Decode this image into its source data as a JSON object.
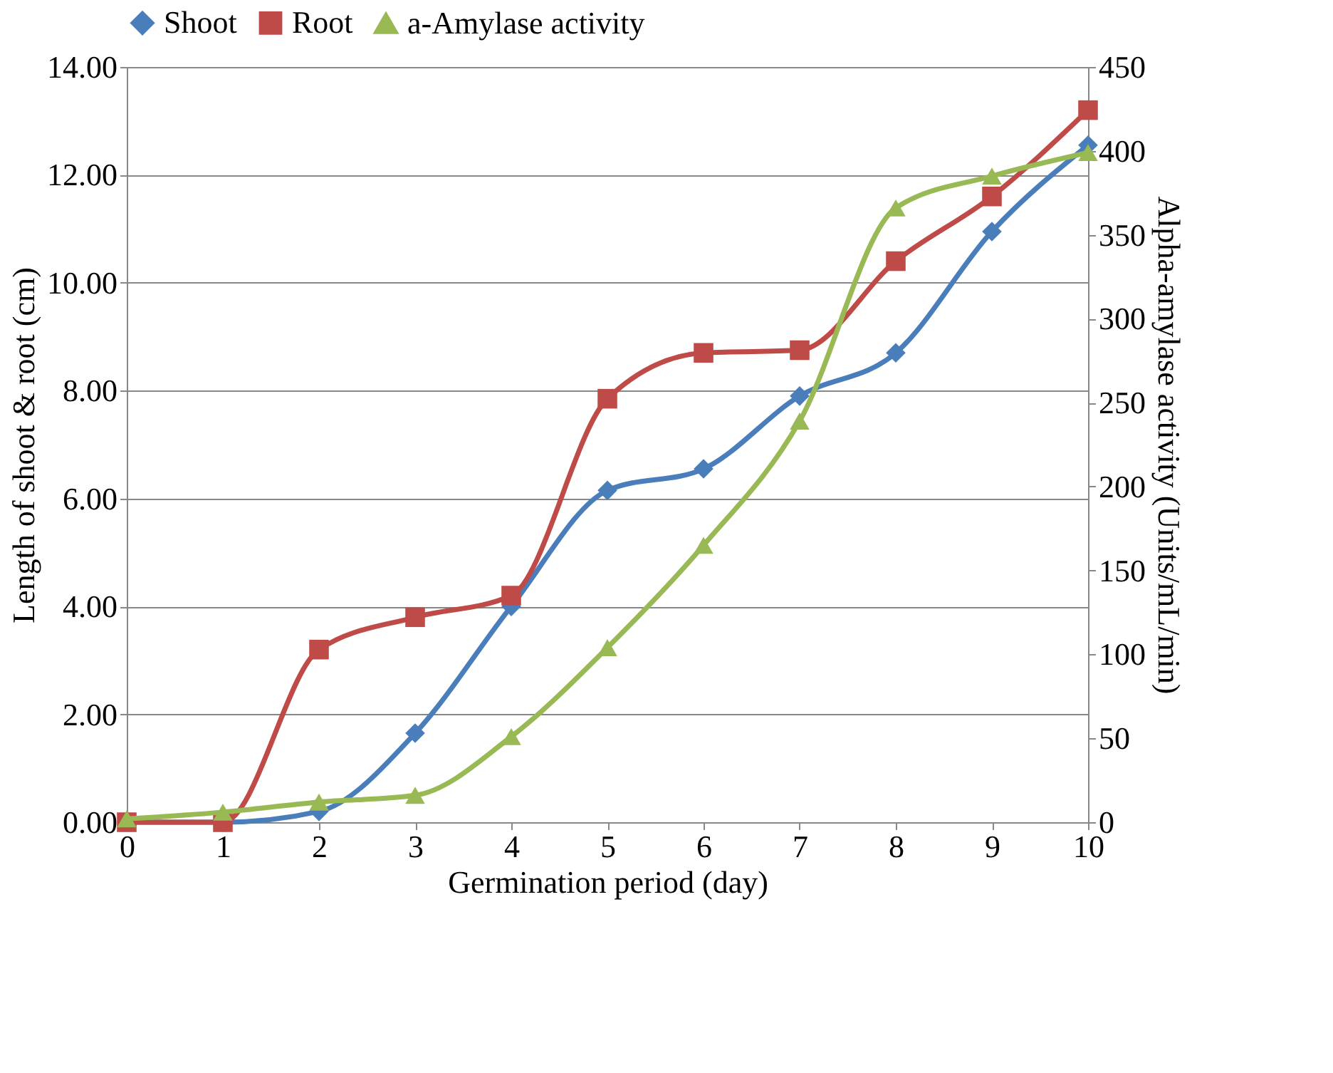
{
  "chart_data": {
    "type": "line",
    "xlabel": "Germination period (day)",
    "ylabel": "Length of shoot & root (cm)",
    "y2label": "Alpha-amylase activity (Units/mL/min)",
    "x": [
      0,
      1,
      2,
      3,
      4,
      5,
      6,
      7,
      8,
      9,
      10
    ],
    "series": [
      {
        "name": "Shoot",
        "color": "#4a7ebb",
        "marker": "diamond",
        "values": [
          0,
          0,
          0.2,
          1.65,
          4.0,
          6.15,
          6.55,
          7.9,
          8.7,
          10.95,
          12.55
        ]
      },
      {
        "name": "Root",
        "color": "#be4b48",
        "marker": "square",
        "values": [
          0,
          0,
          3.2,
          3.8,
          4.2,
          7.85,
          8.7,
          8.75,
          10.4,
          11.6,
          13.2
        ]
      },
      {
        "name": "a-Amylase activity",
        "color": "#98b954",
        "marker": "triangle",
        "axis": "y2",
        "values": [
          2,
          6,
          12,
          16,
          51,
          104,
          165,
          239,
          366,
          385,
          399
        ]
      }
    ],
    "xlim": [
      0,
      10
    ],
    "xticks": [
      0,
      1,
      2,
      3,
      4,
      5,
      6,
      7,
      8,
      9,
      10
    ],
    "ylim": [
      0,
      14
    ],
    "yticks": [
      {
        "value": 0,
        "label": "0.00"
      },
      {
        "value": 2,
        "label": "2.00"
      },
      {
        "value": 4,
        "label": "4.00"
      },
      {
        "value": 6,
        "label": "6.00"
      },
      {
        "value": 8,
        "label": "8.00"
      },
      {
        "value": 10,
        "label": "10.00"
      },
      {
        "value": 12,
        "label": "12.00"
      },
      {
        "value": 14,
        "label": "14.00"
      }
    ],
    "y2lim": [
      0,
      450
    ],
    "y2ticks": [
      0,
      50,
      100,
      150,
      200,
      250,
      300,
      350,
      400,
      450
    ],
    "grid": "y",
    "legend": "top",
    "line_style": "solid"
  }
}
